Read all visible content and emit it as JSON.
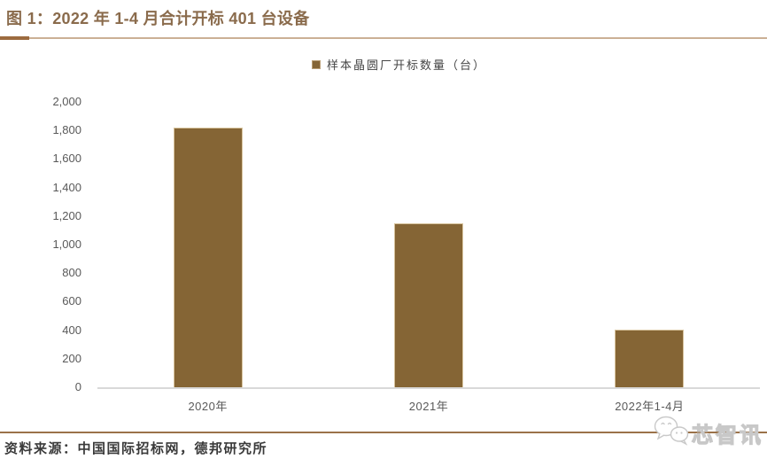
{
  "page": {
    "title": "图 1：2022 年 1-4 月合计开标 401 台设备",
    "source_note": "资料来源：中国国际招标网，德邦研究所",
    "watermark": {
      "icon": "wechat-icon",
      "text": "芯智讯"
    }
  },
  "chart_data": {
    "type": "bar",
    "title": "2022 年 1-4 月合计开标 401 台设备",
    "legend": [
      {
        "label": "样本晶圆厂开标数量（台）",
        "color": "#856535"
      }
    ],
    "legend_position": "top-center",
    "categories": [
      "2020年",
      "2021年",
      "2022年1-4月"
    ],
    "series": [
      {
        "name": "样本晶圆厂开标数量（台）",
        "values": [
          1820,
          1150,
          401
        ]
      }
    ],
    "ylim": [
      0,
      2000
    ],
    "ytick_step": 200,
    "ytick_labels": [
      "0",
      "200",
      "400",
      "600",
      "800",
      "1,000",
      "1,200",
      "1,400",
      "1,600",
      "1,800",
      "2,000"
    ],
    "xlabel": "",
    "ylabel": "",
    "grid": false,
    "background": "#ffffff"
  },
  "colors": {
    "bar": "#856535",
    "title_text": "#8A6B4C",
    "title_rule_dark": "#9C6B3F",
    "title_rule_light": "#CBB095",
    "footer_rule": "#9B7249",
    "axis_text": "#595959",
    "baseline": "#D9D9D9",
    "watermark": "#C8C8C8"
  }
}
